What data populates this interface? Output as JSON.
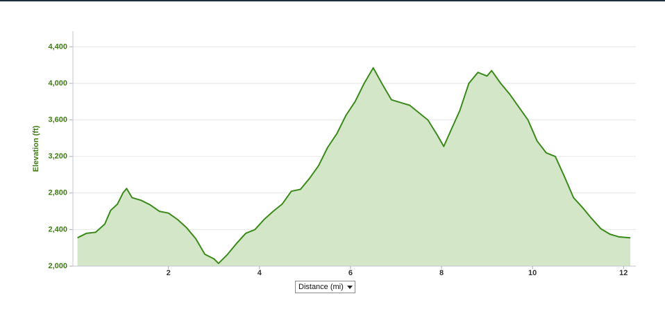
{
  "chart_data": {
    "type": "area",
    "y_label": "Elevation (ft)",
    "x_label": "Distance (mi)",
    "color": "#3a8a1a",
    "fill": "#d3e6c8",
    "grid": true,
    "xlim": [
      -0.1,
      12.27
    ],
    "ylim": [
      2000,
      4570
    ],
    "xticks": [
      2,
      4,
      6,
      8,
      10,
      12
    ],
    "yticks": [
      {
        "value": 2000,
        "label": "2,000"
      },
      {
        "value": 2400,
        "label": "2,400"
      },
      {
        "value": 2800,
        "label": "2,800"
      },
      {
        "value": 3200,
        "label": "3,200"
      },
      {
        "value": 3600,
        "label": "3,600"
      },
      {
        "value": 4000,
        "label": "4,000"
      },
      {
        "value": 4400,
        "label": "4,400"
      }
    ],
    "x": [
      0,
      0.2,
      0.4,
      0.6,
      0.73,
      0.88,
      1.0,
      1.08,
      1.2,
      1.4,
      1.6,
      1.8,
      2.0,
      2.2,
      2.4,
      2.6,
      2.8,
      3.0,
      3.1,
      3.3,
      3.5,
      3.7,
      3.9,
      4.1,
      4.3,
      4.5,
      4.7,
      4.9,
      5.1,
      5.3,
      5.5,
      5.7,
      5.9,
      6.1,
      6.3,
      6.5,
      6.7,
      6.9,
      7.1,
      7.3,
      7.5,
      7.7,
      7.9,
      8.05,
      8.2,
      8.4,
      8.6,
      8.8,
      9.0,
      9.1,
      9.3,
      9.5,
      9.7,
      9.9,
      10.1,
      10.3,
      10.5,
      10.7,
      10.9,
      11.1,
      11.3,
      11.5,
      11.7,
      11.9,
      12.15
    ],
    "values": [
      2310,
      2360,
      2370,
      2460,
      2610,
      2680,
      2800,
      2850,
      2750,
      2720,
      2670,
      2600,
      2580,
      2510,
      2420,
      2300,
      2130,
      2080,
      2030,
      2130,
      2250,
      2360,
      2400,
      2510,
      2600,
      2680,
      2820,
      2840,
      2960,
      3100,
      3300,
      3450,
      3650,
      3800,
      4000,
      4170,
      3990,
      3820,
      3790,
      3760,
      3680,
      3600,
      3440,
      3310,
      3480,
      3700,
      4000,
      4120,
      4080,
      4140,
      4000,
      3880,
      3740,
      3600,
      3370,
      3240,
      3200,
      2980,
      2750,
      2640,
      2520,
      2410,
      2350,
      2320,
      2310
    ]
  }
}
